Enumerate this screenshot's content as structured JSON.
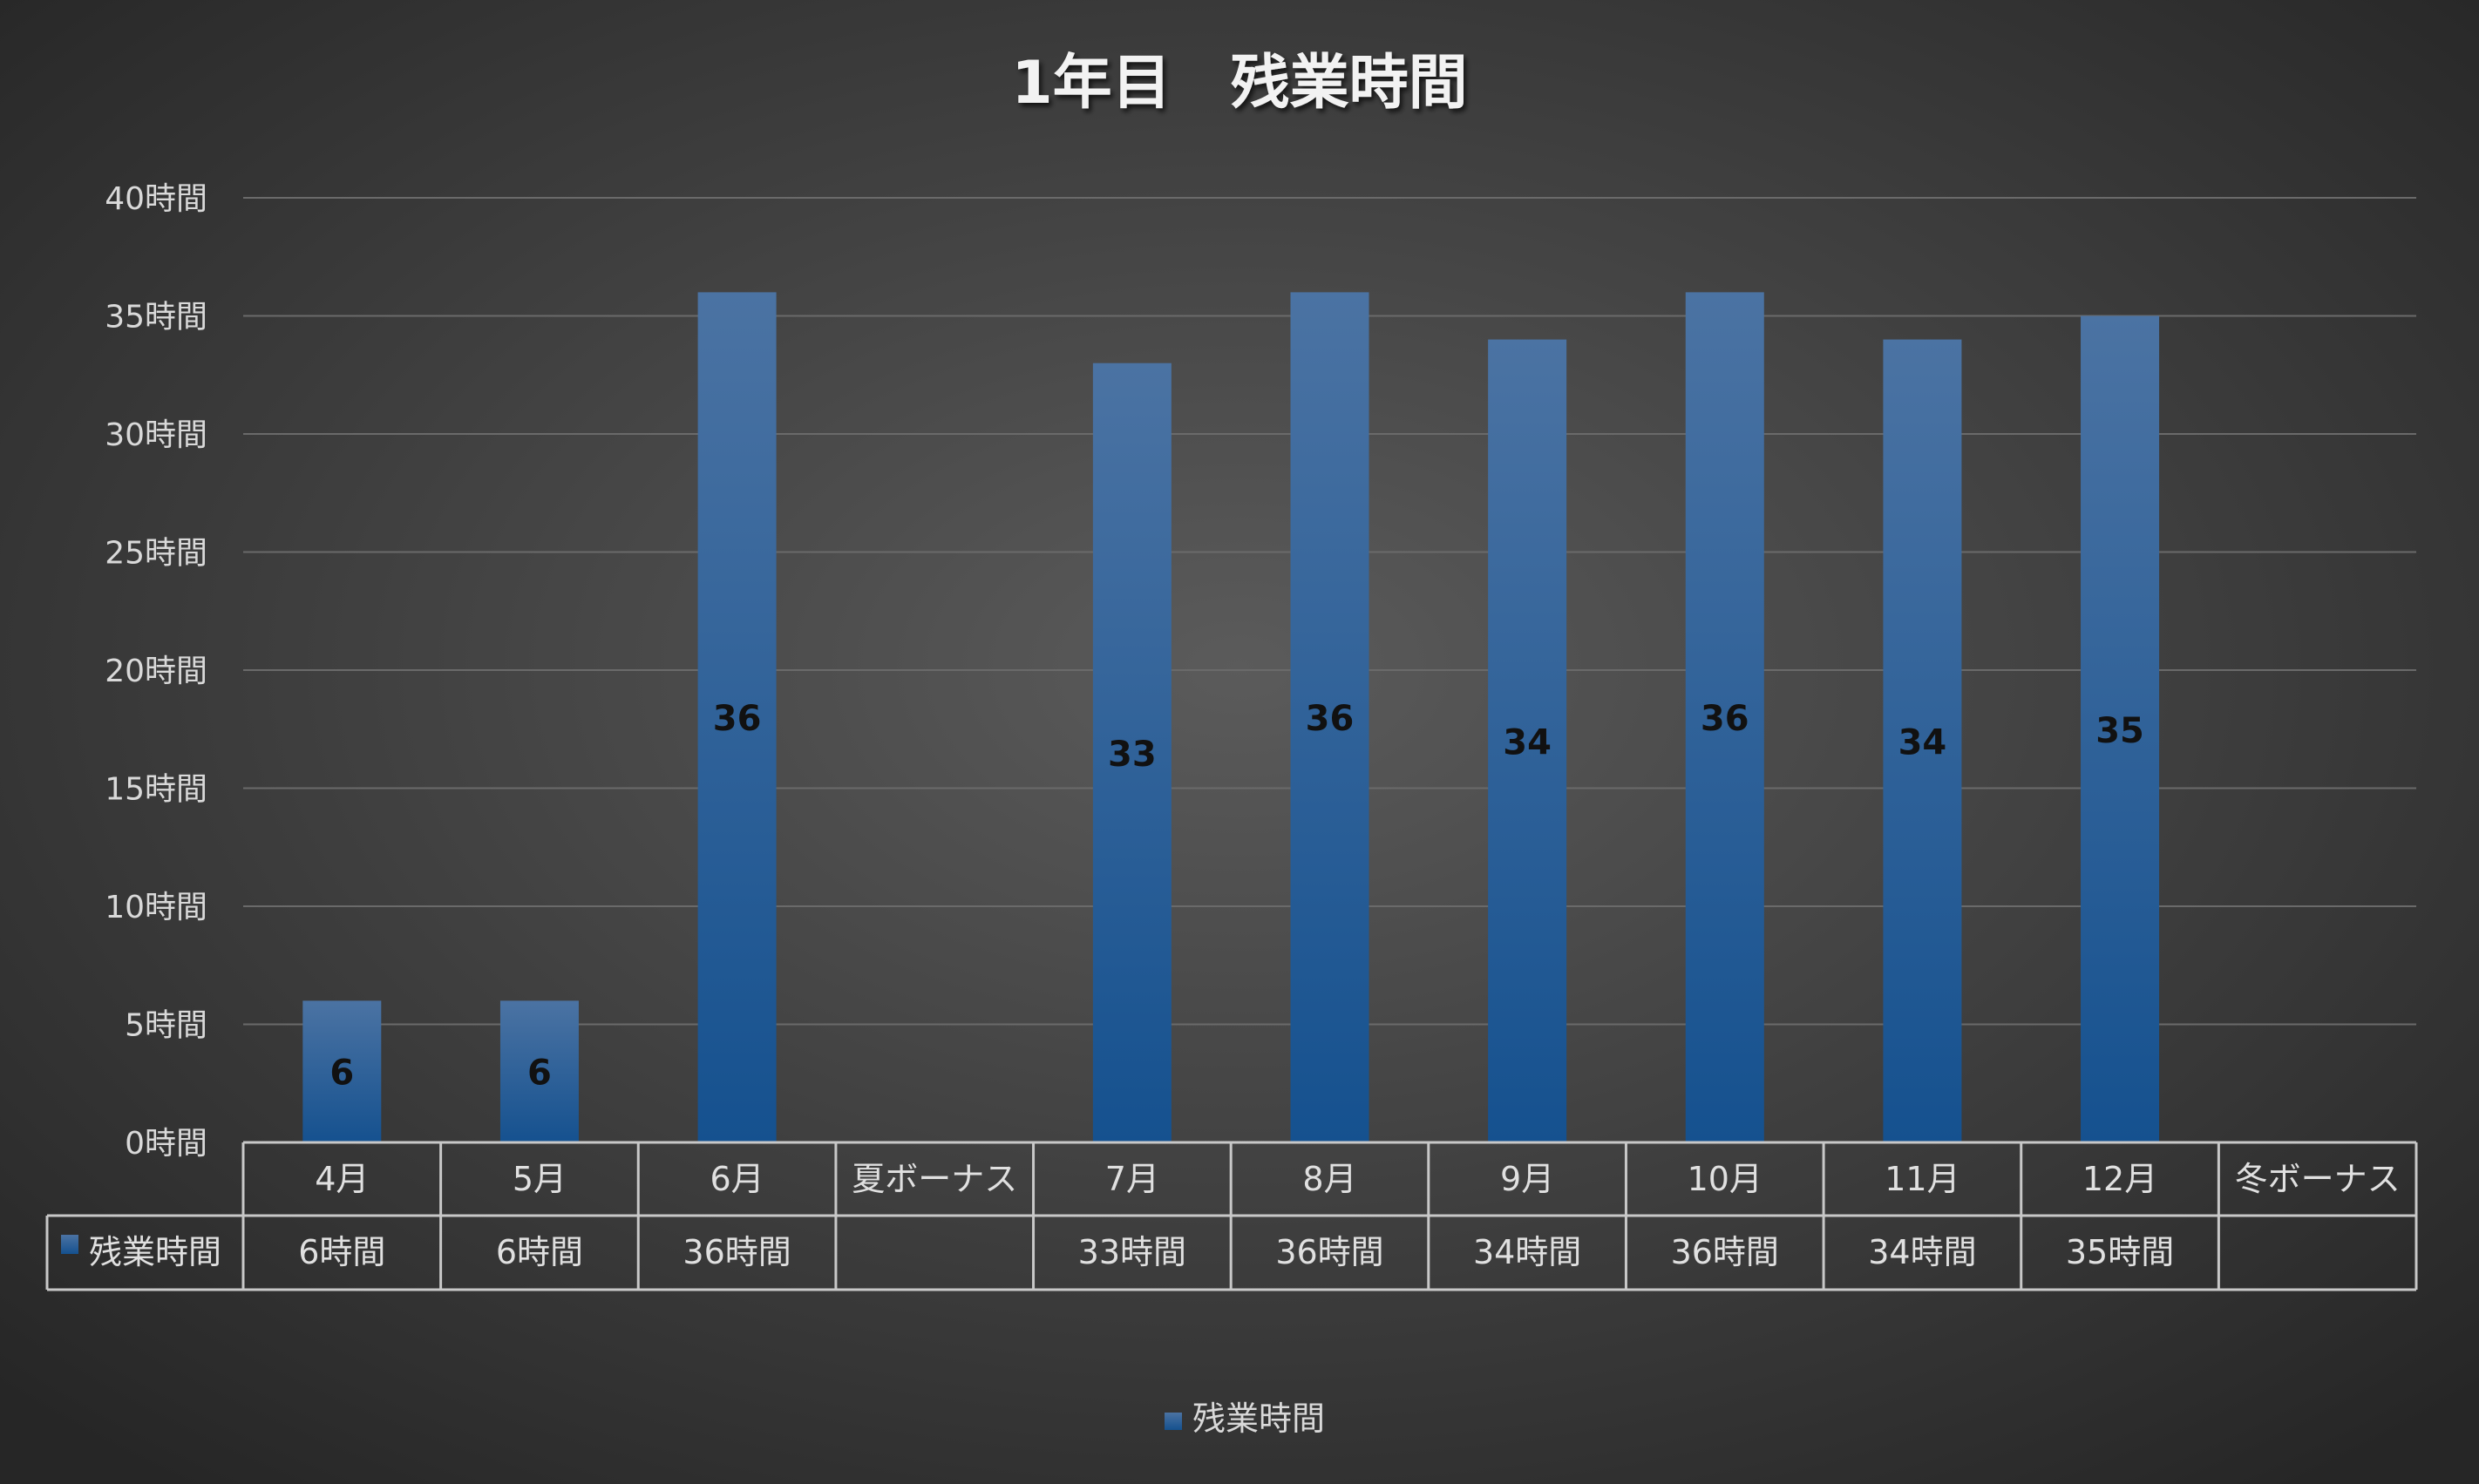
{
  "chart_data": {
    "type": "bar",
    "title": "1年目　残業時間",
    "categories": [
      "4月",
      "5月",
      "6月",
      "夏ボーナス",
      "7月",
      "8月",
      "9月",
      "10月",
      "11月",
      "12月",
      "冬ボーナス"
    ],
    "series": [
      {
        "name": "残業時間",
        "values": [
          6,
          6,
          36,
          null,
          33,
          36,
          34,
          36,
          34,
          35,
          null
        ],
        "color": "#1f5a96"
      }
    ],
    "data_labels": [
      "6",
      "6",
      "36",
      "",
      "33",
      "36",
      "34",
      "36",
      "34",
      "35",
      ""
    ],
    "table_values": [
      "6時間",
      "6時間",
      "36時間",
      "",
      "33時間",
      "36時間",
      "34時間",
      "36時間",
      "34時間",
      "35時間",
      ""
    ],
    "y_ticks": [
      0,
      5,
      10,
      15,
      20,
      25,
      30,
      35,
      40
    ],
    "y_tick_labels": [
      "0時間",
      "5時間",
      "10時間",
      "15時間",
      "20時間",
      "25時間",
      "30時間",
      "35時間",
      "40時間"
    ],
    "ylim": [
      0,
      40
    ],
    "xlabel": "",
    "ylabel": "",
    "grid": true,
    "legend": {
      "position": "bottom",
      "entries": [
        "残業時間"
      ]
    },
    "data_table": true
  }
}
